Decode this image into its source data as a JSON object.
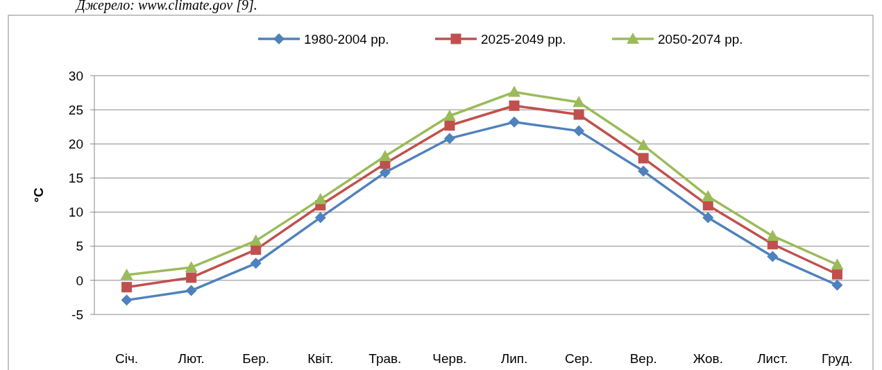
{
  "chart_data": {
    "type": "line",
    "ylabel": "°C",
    "annotations": [
      "Джерело: www.climate.gov [9]."
    ],
    "categories": [
      "Січ.",
      "Лют.",
      "Бер.",
      "Квіт.",
      "Трав.",
      "Черв.",
      "Лип.",
      "Сер.",
      "Вер.",
      "Жов.",
      "Лист.",
      "Груд."
    ],
    "series": [
      {
        "name": "1980-2004 рр.",
        "color": "#4f81bd",
        "marker": "diamond",
        "values": [
          -2.9,
          -1.5,
          2.5,
          9.2,
          15.8,
          20.8,
          23.2,
          21.9,
          16,
          9.2,
          3.5,
          -0.7
        ]
      },
      {
        "name": "2025-2049 рр.",
        "color": "#c0504d",
        "marker": "square",
        "values": [
          -1,
          0.4,
          4.5,
          11,
          17.1,
          22.7,
          25.6,
          24.3,
          17.9,
          11,
          5.3,
          0.9
        ]
      },
      {
        "name": "2050-2074 рр.",
        "color": "#9bbb59",
        "marker": "triangle",
        "values": [
          0.8,
          1.9,
          5.8,
          11.9,
          18.2,
          24.1,
          27.6,
          26.1,
          19.8,
          12.3,
          6.5,
          2.3
        ]
      }
    ],
    "ylim": [
      -5,
      30
    ],
    "yticks": [
      -5,
      0,
      5,
      10,
      15,
      20,
      25,
      30
    ],
    "grid": "y",
    "legend": "top",
    "line_style": "solid"
  }
}
